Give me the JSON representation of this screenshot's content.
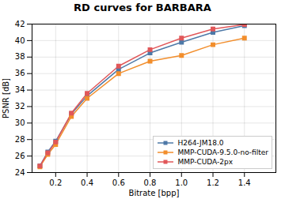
{
  "chart_data": {
    "type": "line",
    "title": "RD curves for BARBARA",
    "xlabel": "Bitrate [bpp]",
    "ylabel": "PSNR [dB]",
    "x": [
      0.1,
      0.15,
      0.2,
      0.3,
      0.4,
      0.6,
      0.8,
      1,
      1.2,
      1.4
    ],
    "series": [
      {
        "name": "H264-JM18.0",
        "values": [
          24.8,
          26.5,
          27.8,
          31.1,
          33.3,
          36.5,
          38.5,
          39.8,
          41.0,
          41.8
        ]
      },
      {
        "name": "MMP-CUDA-9.5.0-no-filter",
        "values": [
          24.7,
          26.2,
          27.4,
          30.8,
          33.0,
          36.0,
          37.5,
          38.2,
          39.5,
          40.3
        ]
      },
      {
        "name": "MMP-CUDA-2px",
        "values": [
          24.8,
          26.4,
          27.7,
          31.2,
          33.6,
          36.9,
          38.9,
          40.3,
          41.4,
          41.95
        ]
      }
    ],
    "marker": "square",
    "xlim": [
      0.05,
      1.6
    ],
    "ylim": [
      24,
      42
    ],
    "xticks": [
      0.2,
      0.4,
      0.6,
      0.8,
      1,
      1.2,
      1.4
    ],
    "yticks": [
      24,
      26,
      28,
      30,
      32,
      34,
      36,
      38,
      40,
      42
    ],
    "grid": true,
    "legend": "lower right"
  }
}
